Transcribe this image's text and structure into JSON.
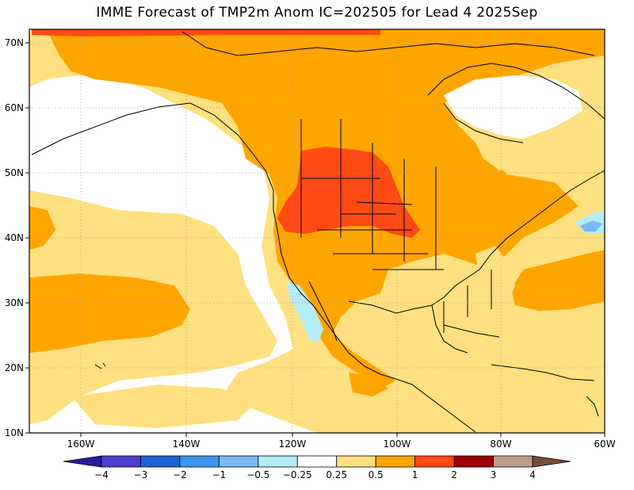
{
  "title": "IMME Forecast of TMP2m Anom IC=202505 for Lead 4 2025Sep",
  "lat_labels": [
    "70N",
    "60N",
    "50N",
    "40N",
    "30N",
    "20N",
    "10N"
  ],
  "lon_labels": [
    "160W",
    "140W",
    "120W",
    "100W",
    "80W",
    "60W"
  ],
  "colorbar": {
    "labels": [
      "−4",
      "−3",
      "−2",
      "−1",
      "−0.5",
      "−0.25",
      "0.25",
      "0.5",
      "1",
      "2",
      "3",
      "4"
    ],
    "colors": [
      "#2a1a9e",
      "#4b3fcf",
      "#1e64d6",
      "#3c95f0",
      "#78b9f5",
      "#b4ecf6",
      "#ffffff",
      "#ffe080",
      "#ffa500",
      "#ff4a14",
      "#a00000",
      "#c09a8c",
      "#7a4a3a"
    ]
  },
  "palette": {
    "land_base": "#ffe080",
    "ocean_neutral": "#ffffff",
    "warm_0_5": "#ffa500",
    "warm_1": "#ff4a14",
    "warm_2": "#a00000",
    "cool_0_25": "#b4ecf6",
    "cool_0_5": "#78b9f5"
  }
}
